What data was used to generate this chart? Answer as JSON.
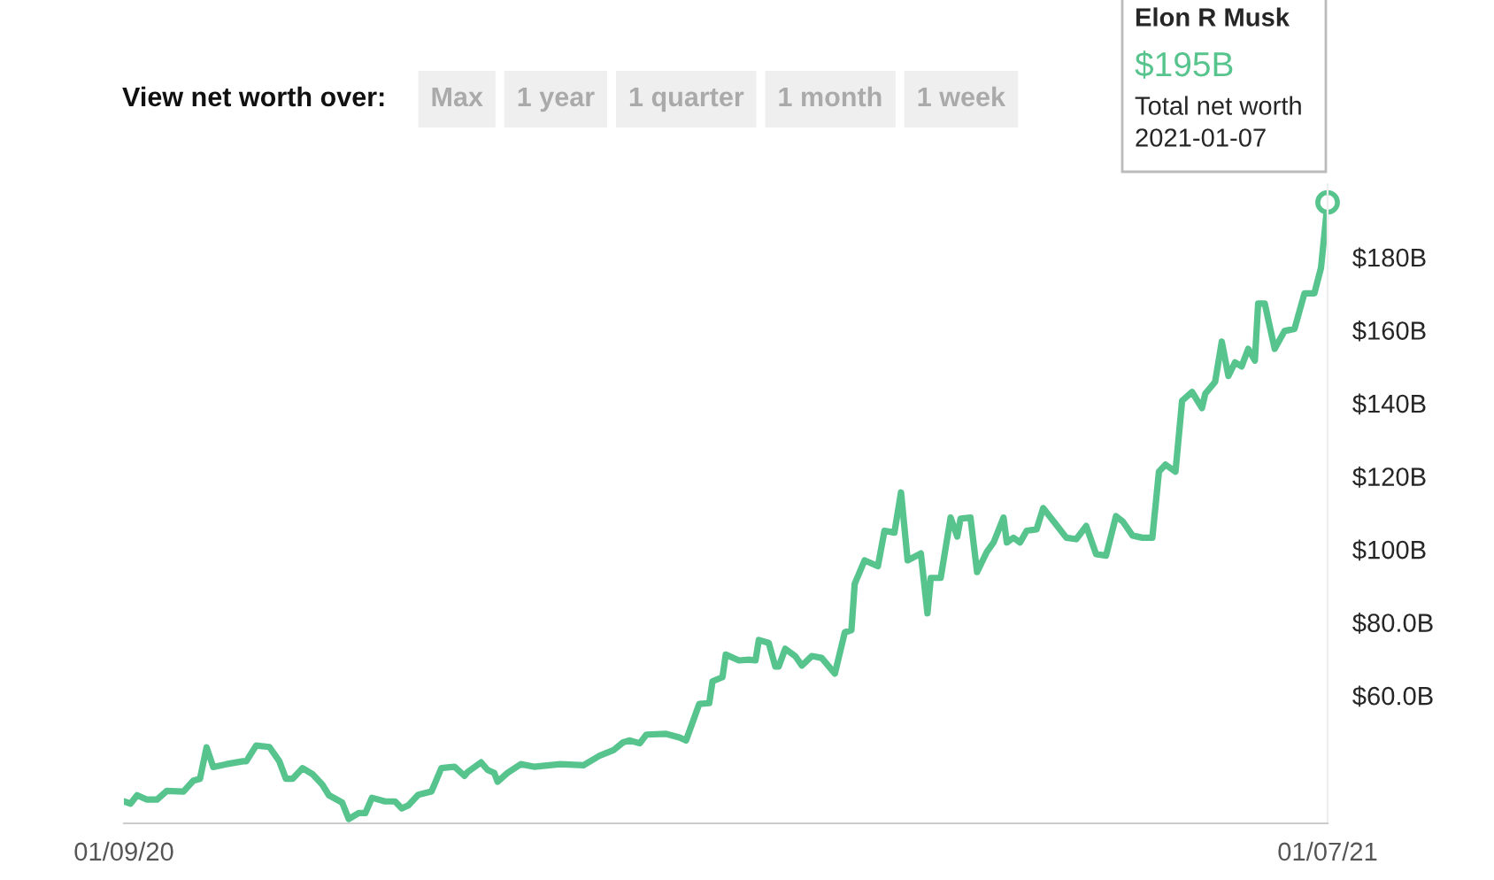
{
  "chart_data": {
    "type": "line",
    "x": [
      "2020-01-09",
      "2020-01-11",
      "2020-01-13",
      "2020-01-16",
      "2020-01-19",
      "2020-01-22",
      "2020-01-27",
      "2020-01-30",
      "2020-02-01",
      "2020-02-03",
      "2020-02-05",
      "2020-02-09",
      "2020-02-14",
      "2020-02-15",
      "2020-02-18",
      "2020-02-22",
      "2020-02-25",
      "2020-02-27",
      "2020-02-29",
      "2020-03-03",
      "2020-03-06",
      "2020-03-09",
      "2020-03-11",
      "2020-03-15",
      "2020-03-17",
      "2020-03-20",
      "2020-03-22",
      "2020-03-24",
      "2020-03-28",
      "2020-03-31",
      "2020-04-02",
      "2020-04-04",
      "2020-04-07",
      "2020-04-11",
      "2020-04-14",
      "2020-04-18",
      "2020-04-21",
      "2020-04-22",
      "2020-04-26",
      "2020-04-28",
      "2020-04-30",
      "2020-05-01",
      "2020-05-04",
      "2020-05-08",
      "2020-05-12",
      "2020-05-20",
      "2020-05-27",
      "2020-06-01",
      "2020-06-05",
      "2020-06-08",
      "2020-06-10",
      "2020-06-13",
      "2020-06-15",
      "2020-06-21",
      "2020-06-25",
      "2020-06-27",
      "2020-07-01",
      "2020-07-04",
      "2020-07-05",
      "2020-07-08",
      "2020-07-09",
      "2020-07-13",
      "2020-07-16",
      "2020-07-18",
      "2020-07-19",
      "2020-07-22",
      "2020-07-24",
      "2020-07-25",
      "2020-07-27",
      "2020-07-30",
      "2020-08-01",
      "2020-08-04",
      "2020-08-07",
      "2020-08-11",
      "2020-08-14",
      "2020-08-16",
      "2020-08-17",
      "2020-08-20",
      "2020-08-24",
      "2020-08-26",
      "2020-08-29",
      "2020-08-31",
      "2020-09-02",
      "2020-09-06",
      "2020-09-08",
      "2020-09-09",
      "2020-09-12",
      "2020-09-15",
      "2020-09-17",
      "2020-09-18",
      "2020-09-21",
      "2020-09-23",
      "2020-09-26",
      "2020-09-28",
      "2020-10-01",
      "2020-10-02",
      "2020-10-04",
      "2020-10-06",
      "2020-10-08",
      "2020-10-11",
      "2020-10-13",
      "2020-10-17",
      "2020-10-20",
      "2020-10-23",
      "2020-10-26",
      "2020-10-29",
      "2020-11-01",
      "2020-11-04",
      "2020-11-06",
      "2020-11-09",
      "2020-11-12",
      "2020-11-15",
      "2020-11-17",
      "2020-11-19",
      "2020-11-22",
      "2020-11-24",
      "2020-11-27",
      "2020-11-30",
      "2020-12-01",
      "2020-12-04",
      "2020-12-06",
      "2020-12-08",
      "2020-12-10",
      "2020-12-12",
      "2020-12-14",
      "2020-12-16",
      "2020-12-17",
      "2020-12-19",
      "2020-12-22",
      "2020-12-25",
      "2020-12-28",
      "2020-12-31",
      "2021-01-03",
      "2021-01-05",
      "2021-01-06",
      "2021-01-07"
    ],
    "series": [
      {
        "name": "Elon R Musk",
        "color": "#57c48e",
        "values": [
          31.0,
          30.4,
          32.7,
          31.5,
          31.5,
          33.9,
          33.7,
          36.7,
          37.2,
          45.8,
          40.4,
          41.2,
          42.0,
          42.0,
          46.3,
          45.9,
          42.0,
          37.2,
          37.2,
          40.1,
          38.5,
          35.6,
          32.7,
          30.7,
          26.2,
          27.8,
          27.8,
          32.0,
          31.0,
          31.0,
          29.1,
          29.9,
          32.8,
          33.7,
          40.1,
          40.5,
          38.0,
          39.1,
          41.7,
          39.6,
          38.8,
          36.4,
          38.8,
          41.2,
          40.5,
          41.2,
          40.9,
          43.6,
          45.0,
          47.2,
          47.7,
          46.9,
          49.3,
          49.5,
          48.5,
          47.7,
          57.7,
          57.9,
          63.9,
          65.0,
          71.2,
          69.6,
          69.8,
          69.6,
          75.2,
          74.4,
          67.9,
          67.9,
          72.8,
          70.8,
          68.2,
          70.8,
          70.3,
          66.0,
          77.3,
          77.9,
          90.6,
          97.0,
          95.4,
          105.1,
          104.6,
          115.6,
          97.0,
          98.9,
          82.5,
          92.2,
          92.2,
          108.7,
          103.5,
          108.4,
          108.7,
          93.8,
          99.4,
          101.9,
          108.7,
          101.9,
          103.2,
          101.9,
          105.1,
          105.5,
          111.3,
          106.7,
          103.2,
          102.8,
          106.4,
          98.7,
          98.3,
          109.1,
          107.7,
          103.8,
          103.2,
          103.2,
          121.3,
          123.2,
          121.3,
          140.7,
          143.1,
          138.7,
          142.6,
          145.9,
          156.9,
          147.5,
          151.2,
          150.1,
          154.9,
          151.7,
          167.3,
          167.3,
          154.9,
          159.8,
          160.4,
          170.1,
          170.1,
          177.1,
          186.0,
          195.0
        ]
      }
    ],
    "xlim": [
      "2020-01-09",
      "2021-01-07"
    ],
    "xticks": [
      {
        "value": "2020-01-09",
        "label": "01/09/20"
      },
      {
        "value": "2021-01-07",
        "label": "01/07/21"
      }
    ],
    "ylim": [
      25,
      200
    ],
    "yticks": [
      {
        "value": 60,
        "label": "$60.0B"
      },
      {
        "value": 80,
        "label": "$80.0B"
      },
      {
        "value": 100,
        "label": "$100B"
      },
      {
        "value": 120,
        "label": "$120B"
      },
      {
        "value": 140,
        "label": "$140B"
      },
      {
        "value": 160,
        "label": "$160B"
      },
      {
        "value": 180,
        "label": "$180B"
      }
    ],
    "grid": false,
    "legend": false,
    "annotations": [
      "View net worth over:",
      "Max",
      "1 year",
      "1 quarter",
      "1 month",
      "1 week",
      "$195B",
      "Total net worth",
      "2021-01-07"
    ]
  }
}
